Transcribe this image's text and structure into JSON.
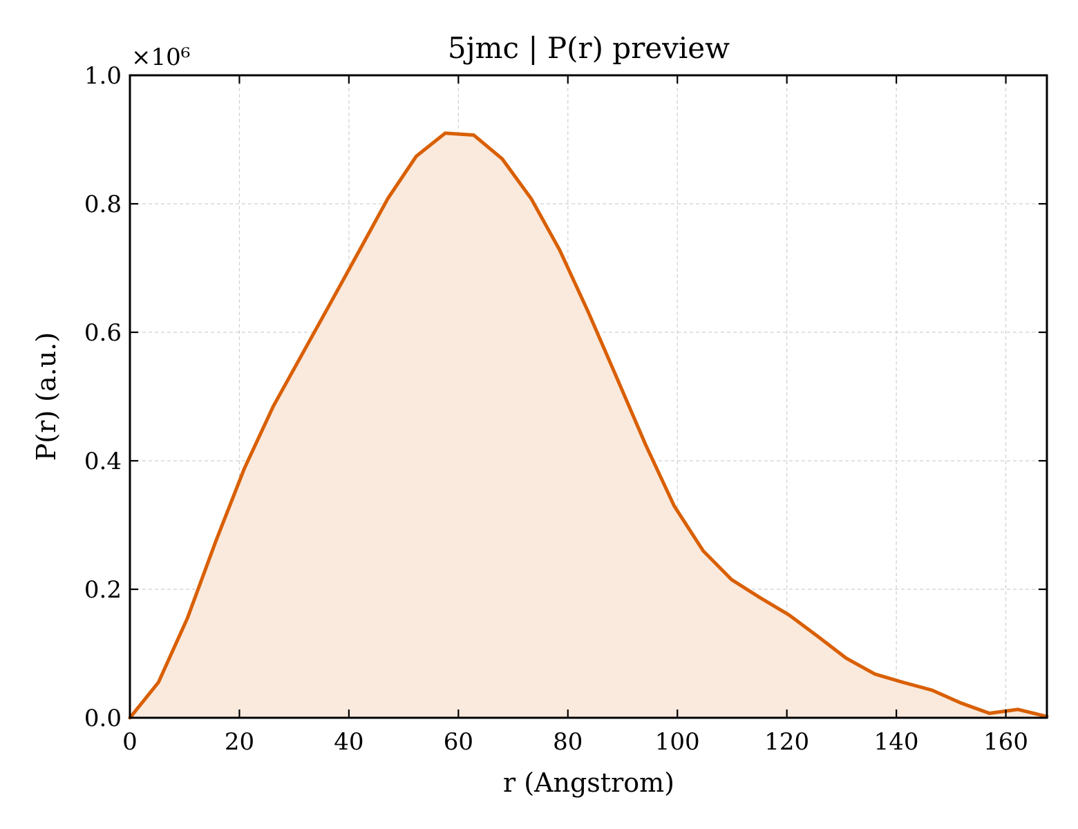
{
  "chart_data": {
    "type": "area",
    "title": "5jmc | P(r) preview",
    "xlabel": "r (Angstrom)",
    "ylabel": "P(r) (a.u.)",
    "y_multiplier_label": "×10⁶",
    "y_scale_factor": 1000000,
    "xlim": [
      0,
      167.5
    ],
    "ylim": [
      0,
      1.0
    ],
    "x_ticks": [
      0,
      20,
      40,
      60,
      80,
      100,
      120,
      140,
      160
    ],
    "y_ticks": [
      0.0,
      0.2,
      0.4,
      0.6,
      0.8,
      1.0
    ],
    "x_tick_labels": [
      "0",
      "20",
      "40",
      "60",
      "80",
      "100",
      "120",
      "140",
      "160"
    ],
    "y_tick_labels": [
      "0.0",
      "0.2",
      "0.4",
      "0.6",
      "0.8",
      "1.0"
    ],
    "grid": true,
    "legend": "none",
    "series": [
      {
        "color": "#d95f02",
        "fill_color": "#fae9dd",
        "x": [
          0,
          5.2,
          10.5,
          15.7,
          20.9,
          26.2,
          31.4,
          36.6,
          41.9,
          47.1,
          52.3,
          57.6,
          62.8,
          68.0,
          73.3,
          78.5,
          83.7,
          89.0,
          94.2,
          99.4,
          104.7,
          109.9,
          115.1,
          120.4,
          125.6,
          130.8,
          136.1,
          141.3,
          146.5,
          151.8,
          157.0,
          162.2,
          167.5
        ],
        "y": [
          0.0,
          0.055,
          0.155,
          0.275,
          0.388,
          0.485,
          0.565,
          0.645,
          0.727,
          0.808,
          0.874,
          0.91,
          0.907,
          0.87,
          0.808,
          0.728,
          0.632,
          0.528,
          0.425,
          0.33,
          0.26,
          0.215,
          0.187,
          0.16,
          0.127,
          0.093,
          0.068,
          0.055,
          0.043,
          0.023,
          0.007,
          0.013,
          0.002
        ]
      }
    ]
  }
}
